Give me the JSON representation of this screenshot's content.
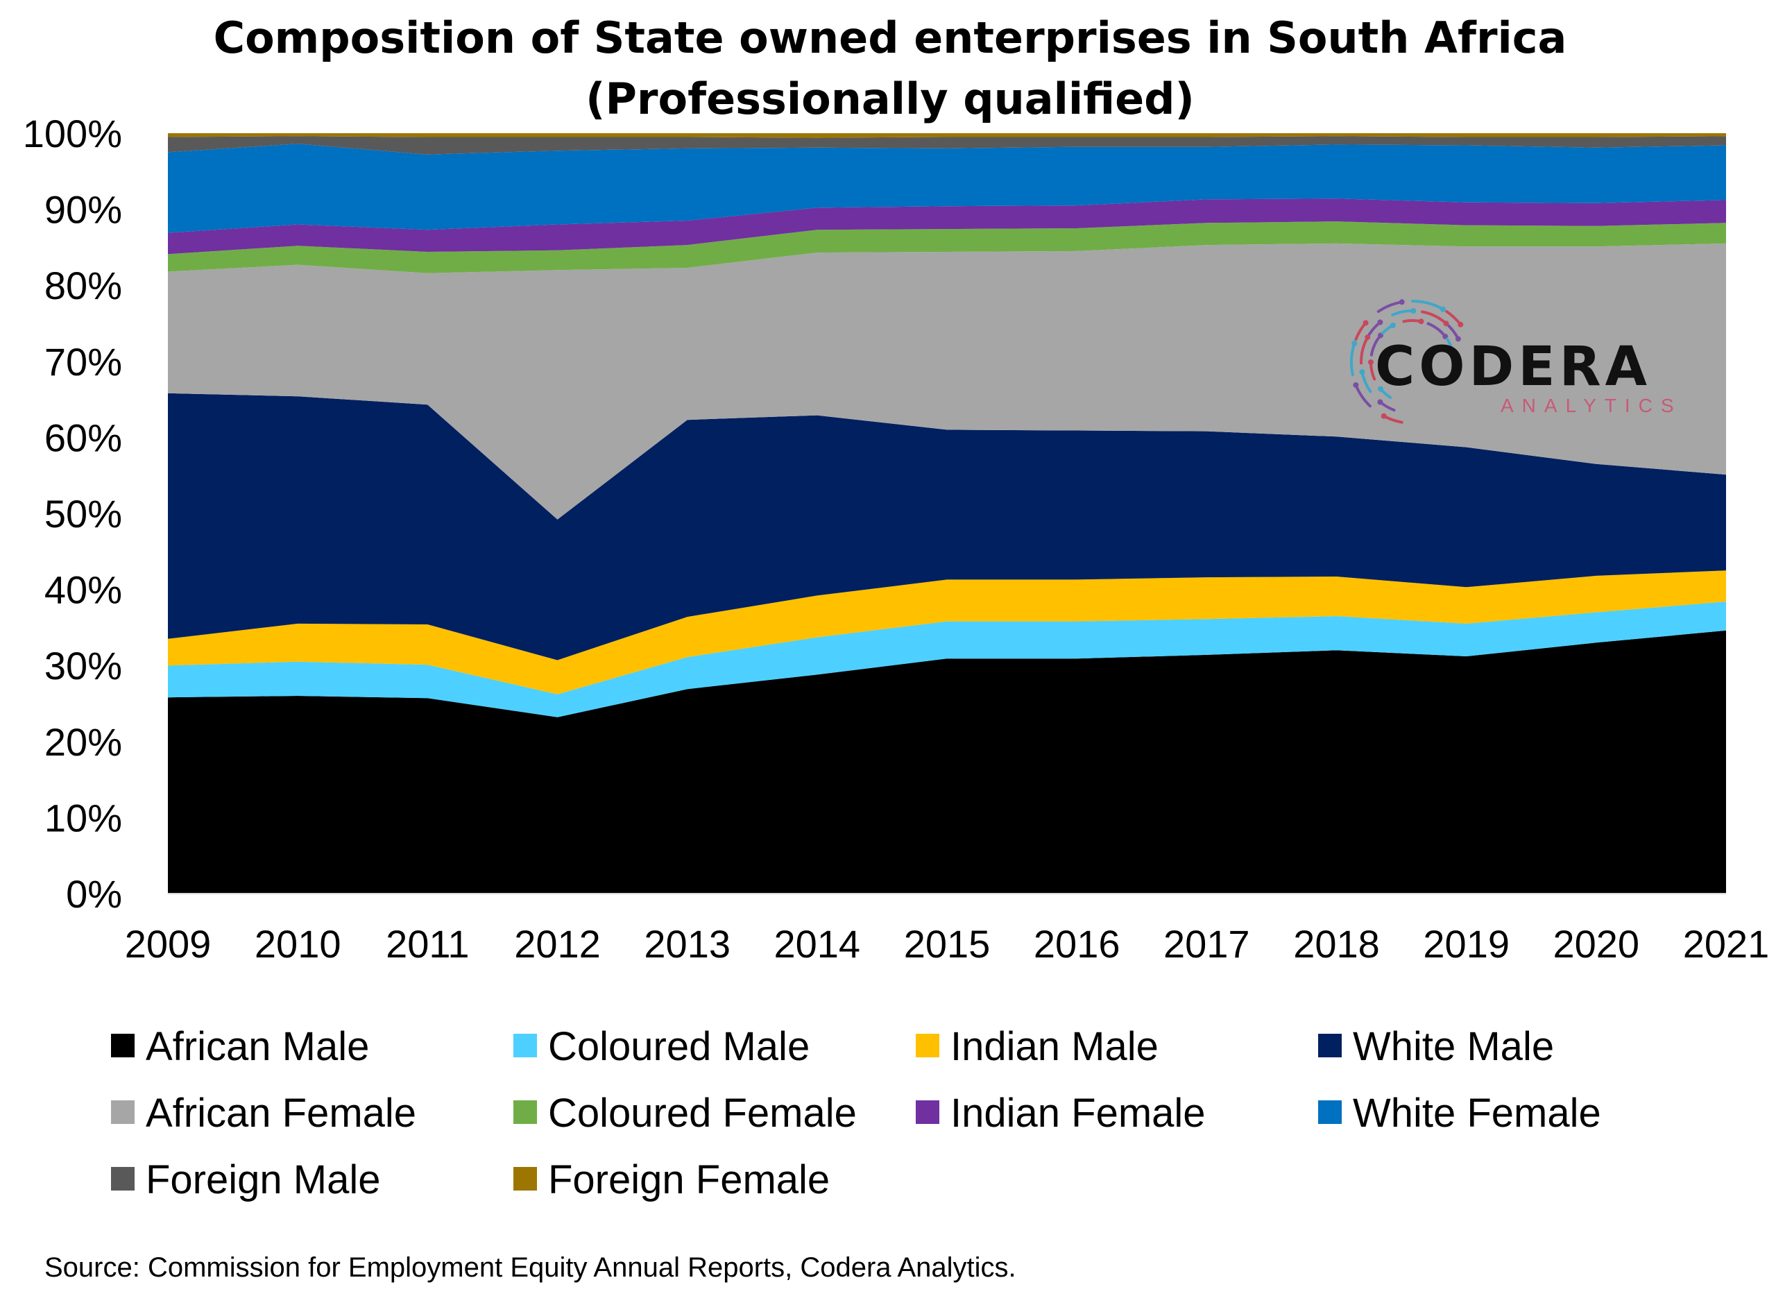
{
  "chart_data": {
    "type": "area",
    "stacked": true,
    "title": "Composition of State owned enterprises in South Africa",
    "subtitle": "(Professionally qualified)",
    "x": [
      "2009",
      "2010",
      "2011",
      "2012",
      "2013",
      "2014",
      "2015",
      "2016",
      "2017",
      "2018",
      "2019",
      "2020",
      "2021"
    ],
    "ylim": [
      0,
      100
    ],
    "yticks": [
      "0%",
      "10%",
      "20%",
      "30%",
      "40%",
      "50%",
      "60%",
      "70%",
      "80%",
      "90%",
      "100%"
    ],
    "grid": false,
    "legend_position": "bottom",
    "series": [
      {
        "name": "African Male",
        "color": "#000000",
        "values": [
          25.8,
          26.0,
          25.7,
          23.2,
          26.9,
          28.8,
          30.9,
          30.9,
          31.4,
          32.0,
          31.2,
          33.0,
          34.6
        ]
      },
      {
        "name": "Coloured Male",
        "color": "#4dd0ff",
        "values": [
          4.2,
          4.5,
          4.4,
          3.0,
          4.2,
          4.9,
          4.9,
          4.9,
          4.7,
          4.5,
          4.3,
          4.0,
          3.8
        ]
      },
      {
        "name": "Indian Male",
        "color": "#ffc000",
        "values": [
          3.5,
          5.0,
          5.3,
          4.5,
          5.3,
          5.5,
          5.5,
          5.5,
          5.5,
          5.2,
          4.8,
          4.8,
          4.1
        ]
      },
      {
        "name": "White Male",
        "color": "#002060",
        "values": [
          32.3,
          29.9,
          28.9,
          18.5,
          25.9,
          23.7,
          19.7,
          19.6,
          19.2,
          18.4,
          18.4,
          14.7,
          12.6
        ]
      },
      {
        "name": "African Female",
        "color": "#a6a6a6",
        "values": [
          16.0,
          17.3,
          17.3,
          32.8,
          20.0,
          21.4,
          23.4,
          23.6,
          24.5,
          25.4,
          26.4,
          28.6,
          30.4
        ]
      },
      {
        "name": "Coloured Female",
        "color": "#70ad47",
        "values": [
          2.3,
          2.5,
          2.8,
          2.6,
          3.0,
          3.0,
          3.0,
          3.0,
          2.9,
          2.9,
          2.8,
          2.7,
          2.7
        ]
      },
      {
        "name": "Indian Female",
        "color": "#7030a0",
        "values": [
          2.8,
          2.8,
          2.9,
          3.4,
          3.2,
          2.9,
          3.0,
          3.0,
          3.1,
          3.0,
          3.0,
          3.0,
          3.0
        ]
      },
      {
        "name": "White Female",
        "color": "#0070c0",
        "values": [
          10.6,
          10.6,
          9.9,
          9.7,
          9.5,
          7.9,
          7.6,
          7.7,
          6.9,
          7.1,
          7.5,
          7.3,
          7.2
        ]
      },
      {
        "name": "Foreign Male",
        "color": "#595959",
        "values": [
          2.0,
          1.0,
          2.3,
          1.8,
          1.5,
          1.3,
          1.5,
          1.3,
          1.3,
          1.1,
          1.1,
          1.4,
          1.2
        ]
      },
      {
        "name": "Foreign Female",
        "color": "#9c7600",
        "values": [
          0.5,
          0.4,
          0.5,
          0.5,
          0.5,
          0.6,
          0.5,
          0.5,
          0.5,
          0.4,
          0.5,
          0.5,
          0.4
        ]
      }
    ],
    "source": "Source: Commission for Employment Equity Annual Reports, Codera Analytics."
  },
  "logo": {
    "name": "CODERA",
    "tagline": "ANALYTICS",
    "icon": "codera-circuit-ring-icon",
    "colors": [
      "#c8475e",
      "#7b4ea3",
      "#3fa7c9"
    ]
  }
}
